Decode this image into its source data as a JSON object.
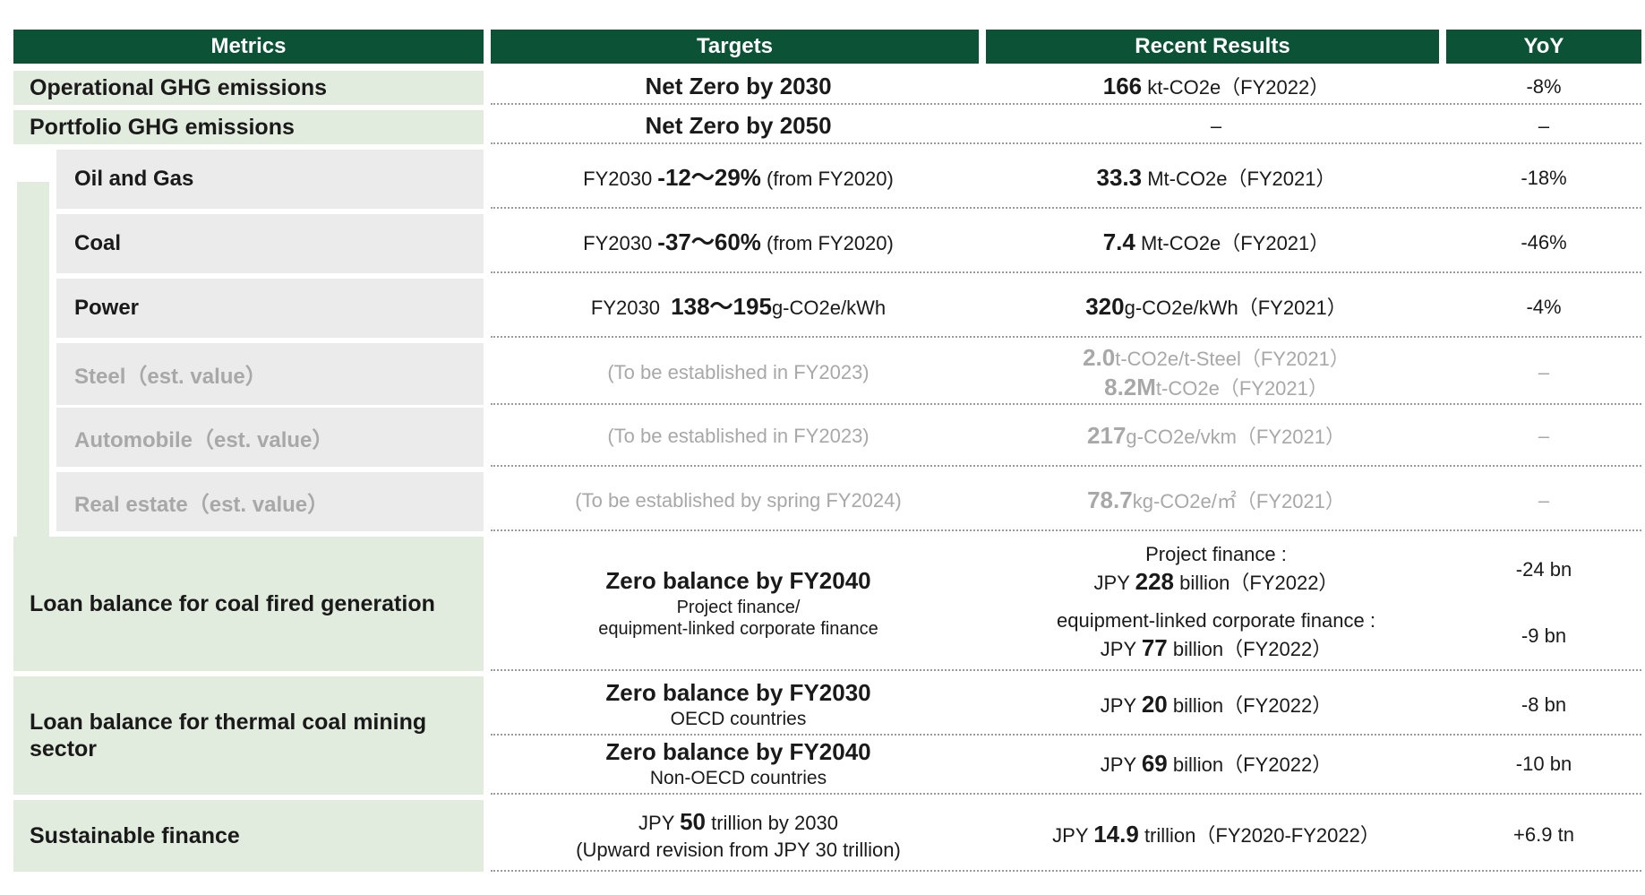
{
  "header": {
    "metrics": "Metrics",
    "targets": "Targets",
    "recent_results": "Recent Results",
    "yoy": "YoY"
  },
  "colors": {
    "header_bg": "#0b5236",
    "header_text": "#ffffff",
    "metric_green_bg": "#e2ecde",
    "metric_gray_bg": "#ebebeb",
    "muted_text": "#a8a8a8",
    "body_text": "#1a1a1a",
    "divider_dotted": "#9b9b9b"
  },
  "rows": {
    "operational": {
      "metric": "Operational GHG emissions",
      "target_bold": "Net Zero by 2030",
      "result_bold": "166",
      "result_rest": " kt-CO2e（FY2022）",
      "yoy": "-8%"
    },
    "portfolio": {
      "metric": "Portfolio GHG emissions",
      "target_bold": "Net Zero by 2050",
      "result": "–",
      "yoy": "–"
    },
    "oil_gas": {
      "metric": "Oil and Gas",
      "target_pre": "FY2030 ",
      "target_bold": "-12～29%",
      "target_post": " (from FY2020)",
      "result_bold": "33.3",
      "result_rest": " Mt-CO2e（FY2021）",
      "yoy": "-18%"
    },
    "coal": {
      "metric": "Coal",
      "target_pre": "FY2030 ",
      "target_bold": "-37～60%",
      "target_post": " (from FY2020)",
      "result_bold": "7.4",
      "result_rest": " Mt-CO2e（FY2021）",
      "yoy": "-46%"
    },
    "power": {
      "metric": "Power",
      "target_pre": "FY2030  ",
      "target_bold": "138～195",
      "target_post": "g-CO2e/kWh",
      "result_bold": "320",
      "result_rest": "g-CO2e/kWh（FY2021）",
      "yoy": "-4%"
    },
    "steel": {
      "metric": "Steel（est. value）",
      "target": "(To be established in FY2023)",
      "result1_bold": "2.0",
      "result1_rest": "t-CO2e/t-Steel（FY2021）",
      "result2_bold": "8.2M",
      "result2_rest": "t-CO2e（FY2021）",
      "yoy": "–"
    },
    "automobile": {
      "metric": "Automobile（est. value）",
      "target": "(To be established in FY2023)",
      "result_bold": "217",
      "result_rest": "g-CO2e/vkm（FY2021）",
      "yoy": "–"
    },
    "real_estate": {
      "metric": "Real estate（est. value）",
      "target": "(To be established by spring FY2024)",
      "result_bold": "78.7",
      "result_rest": "kg-CO2e/㎡（FY2021）",
      "yoy": "–"
    },
    "coal_fired": {
      "metric": "Loan balance for coal fired generation",
      "target_bold": "Zero balance by FY2040",
      "target_sub1": "Project finance/",
      "target_sub2": "equipment-linked corporate finance",
      "sub_a_label": "Project finance :",
      "sub_a_pre": "JPY ",
      "sub_a_bold": "228",
      "sub_a_post": " billion（FY2022）",
      "sub_a_yoy": "-24 bn",
      "sub_b_label": "equipment-linked corporate finance :",
      "sub_b_pre": "JPY ",
      "sub_b_bold": "77",
      "sub_b_post": " billion（FY2022）",
      "sub_b_yoy": "-9 bn"
    },
    "thermal_coal": {
      "metric": "Loan balance for thermal coal mining sector",
      "sub_a_target_bold": "Zero balance by FY2030",
      "sub_a_target_sub": "OECD countries",
      "sub_a_pre": "JPY ",
      "sub_a_bold": "20",
      "sub_a_post": " billion（FY2022）",
      "sub_a_yoy": "-8 bn",
      "sub_b_target_bold": "Zero balance by FY2040",
      "sub_b_target_sub": "Non-OECD countries",
      "sub_b_pre": "JPY ",
      "sub_b_bold": "69",
      "sub_b_post": " billion（FY2022）",
      "sub_b_yoy": "-10 bn"
    },
    "sustainable": {
      "metric": "Sustainable finance",
      "target_pre": "JPY ",
      "target_bold": "50",
      "target_post": " trillion by 2030",
      "target_sub": "(Upward revision from JPY 30 trillion)",
      "result_pre": "JPY ",
      "result_bold": "14.9",
      "result_post": " trillion（FY2020-FY2022）",
      "yoy": "+6.9 tn"
    }
  }
}
